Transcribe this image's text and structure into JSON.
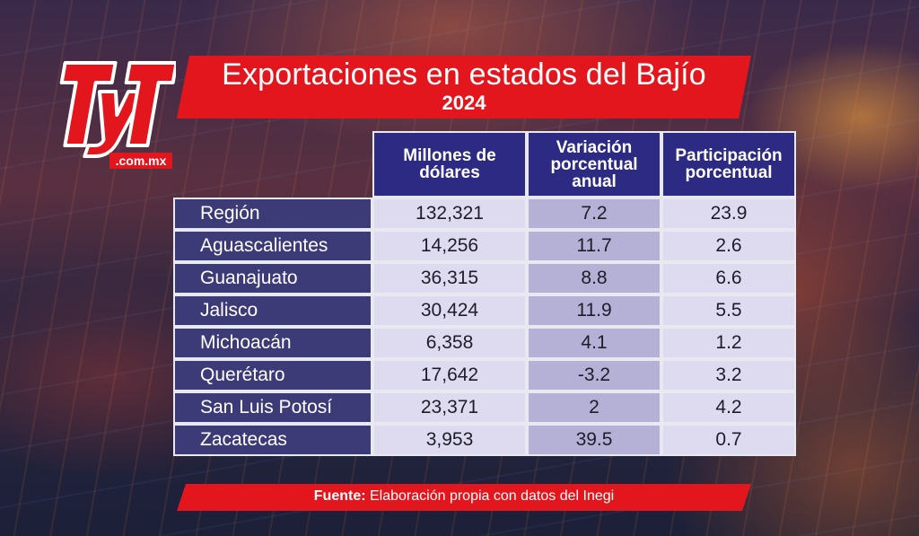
{
  "logo": {
    "brand": "TyT",
    "domain": ".com.mx",
    "color": "#e3161d"
  },
  "title": {
    "main": "Exportaciones en estados del Bajío",
    "year": "2024"
  },
  "table": {
    "headers": [
      {
        "line1": "Millones de",
        "line2": "dólares",
        "line3": ""
      },
      {
        "line1": "Variación",
        "line2": "porcentual",
        "line3": "anual"
      },
      {
        "line1": "Participación",
        "line2": "porcentual",
        "line3": ""
      }
    ],
    "rows": [
      {
        "name": "Región",
        "usd": "132,321",
        "var": "7.2",
        "part": "23.9"
      },
      {
        "name": "Aguascalientes",
        "usd": "14,256",
        "var": "11.7",
        "part": "2.6"
      },
      {
        "name": "Guanajuato",
        "usd": "36,315",
        "var": "8.8",
        "part": "6.6"
      },
      {
        "name": "Jalisco",
        "usd": "30,424",
        "var": "11.9",
        "part": "5.5"
      },
      {
        "name": "Michoacán",
        "usd": "6,358",
        "var": "4.1",
        "part": "1.2"
      },
      {
        "name": "Querétaro",
        "usd": "17,642",
        "var": "-3.2",
        "part": "3.2"
      },
      {
        "name": "San Luis Potosí",
        "usd": "23,371",
        "var": "2",
        "part": "4.2"
      },
      {
        "name": "Zacatecas",
        "usd": "3,953",
        "var": "39.5",
        "part": "0.7"
      }
    ]
  },
  "source": {
    "label": "Fuente:",
    "text": " Elaboración propia con datos del Inegi"
  },
  "colors": {
    "accent_red": "#e3161d",
    "header_blue": "#2c2a82",
    "row_name_bg": "#3d3a78",
    "cell_light": "#dedbf0",
    "cell_mid": "#b4b0d6"
  }
}
